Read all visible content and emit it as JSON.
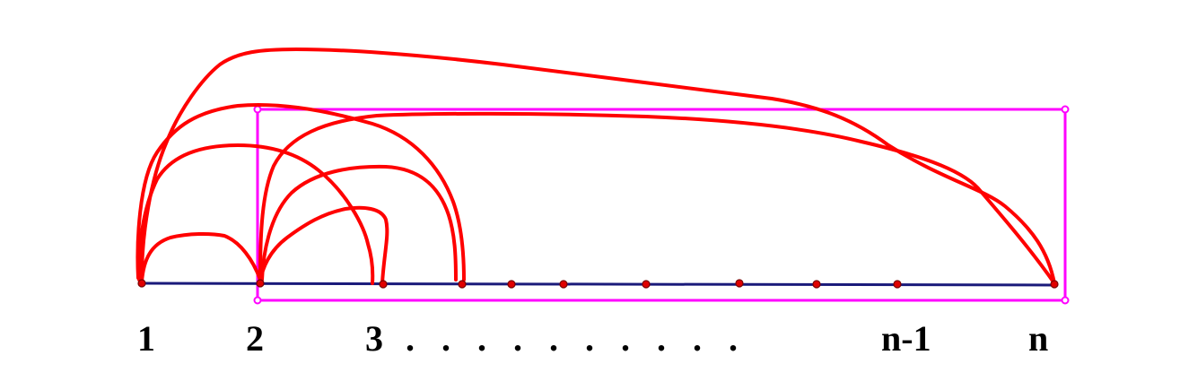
{
  "labels": {
    "node_1": "1",
    "node_2": "2",
    "node_3": "3",
    "ellipsis": ".   .   .   .   .   .   .   .   .   .",
    "node_n_minus_1": "n-1",
    "node_n": "n"
  },
  "colors": {
    "axis_line": "#1a1a7a",
    "arcs": "#ff0000",
    "nodes": "#e00000",
    "node_outline": "#7a0000",
    "frame": "#ff00ff",
    "text": "#000000"
  }
}
